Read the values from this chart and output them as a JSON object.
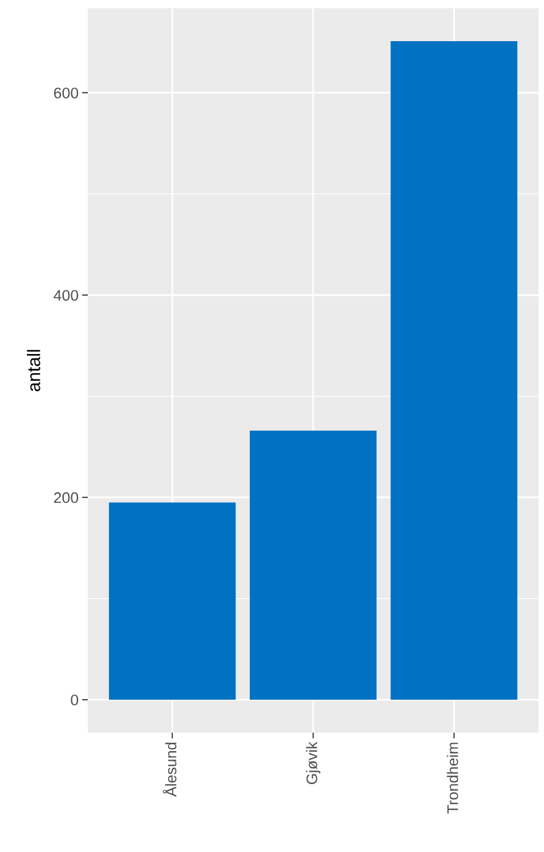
{
  "chart_data": {
    "type": "bar",
    "ylabel": "antall",
    "categories": [
      "Ålesund",
      "Gjøvik",
      "Trondheim"
    ],
    "values": [
      195,
      266,
      651
    ],
    "color": "#0072c4",
    "ylim": [
      -32.55,
      683.55
    ],
    "yticks": [
      0,
      200,
      400,
      600
    ],
    "grid": true
  }
}
